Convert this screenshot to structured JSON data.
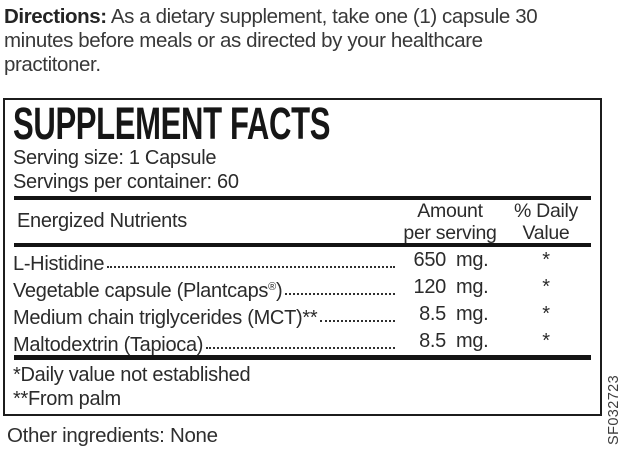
{
  "directions": {
    "label": "Directions:",
    "lines": [
      " As a dietary supplement, take one (1) capsule 30",
      "minutes before meals or as directed by your healthcare",
      "practitoner."
    ]
  },
  "facts": {
    "title": "SUPPLEMENT FACTS",
    "serving_size": "Serving size: 1 Capsule",
    "servings_per_container": "Servings per container: 60",
    "columns": {
      "nutrient": "Energized Nutrients",
      "amount_line1": "Amount",
      "amount_line2": "per serving",
      "dv_line1": "% Daily",
      "dv_line2": "Value"
    },
    "rows": [
      {
        "name": "L-Histidine",
        "sup": "",
        "name_end": "",
        "value": "650",
        "unit": "mg.",
        "dv": "*"
      },
      {
        "name": "Vegetable capsule (Plantcaps",
        "sup": "®",
        "name_end": ")",
        "value": "120",
        "unit": "mg.",
        "dv": "*"
      },
      {
        "name": "Medium chain triglycerides (MCT)**",
        "sup": "",
        "name_end": "",
        "value": "8.5",
        "unit": "mg.",
        "dv": "*"
      },
      {
        "name": "Maltodextrin (Tapioca)",
        "sup": "",
        "name_end": "",
        "value": "8.5",
        "unit": "mg.",
        "dv": "*"
      }
    ],
    "footnotes": [
      "*Daily value not established",
      "**From palm"
    ]
  },
  "other_ingredients": "Other ingredients: None",
  "side_code": "SF032723",
  "colors": {
    "ink": "#1c1c1c",
    "background": "#ffffff"
  }
}
